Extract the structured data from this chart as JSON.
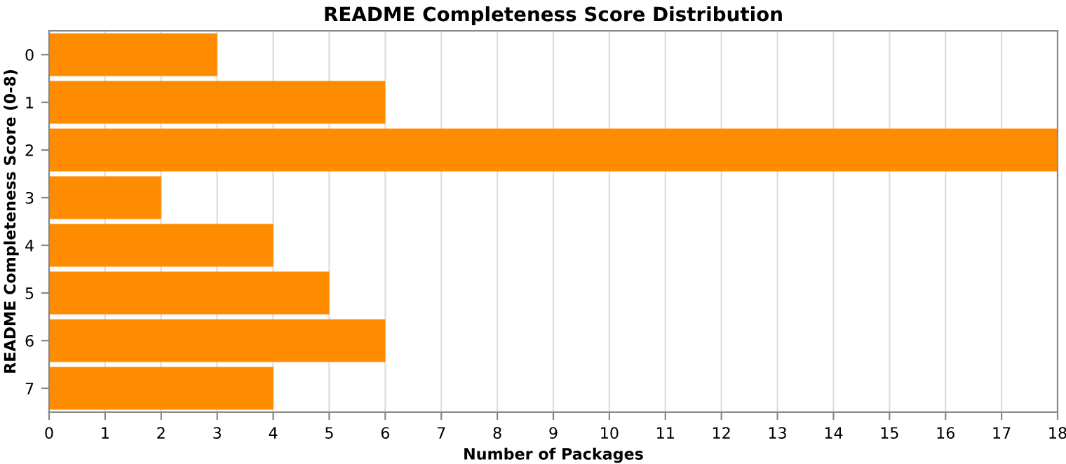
{
  "chart_data": {
    "type": "bar",
    "orientation": "horizontal",
    "title": "README Completeness Score Distribution",
    "xlabel": "Number of Packages",
    "ylabel": "README Completeness Score (0-8)",
    "categories": [
      "0",
      "1",
      "2",
      "3",
      "4",
      "5",
      "6",
      "7"
    ],
    "values": [
      3,
      6,
      18,
      2,
      4,
      5,
      6,
      4
    ],
    "color": "#ff8c00",
    "xlim": [
      0,
      18
    ],
    "xticks": [
      0,
      1,
      2,
      3,
      4,
      5,
      6,
      7,
      8,
      9,
      10,
      11,
      12,
      13,
      14,
      15,
      16,
      17,
      18
    ],
    "grid": "x"
  }
}
